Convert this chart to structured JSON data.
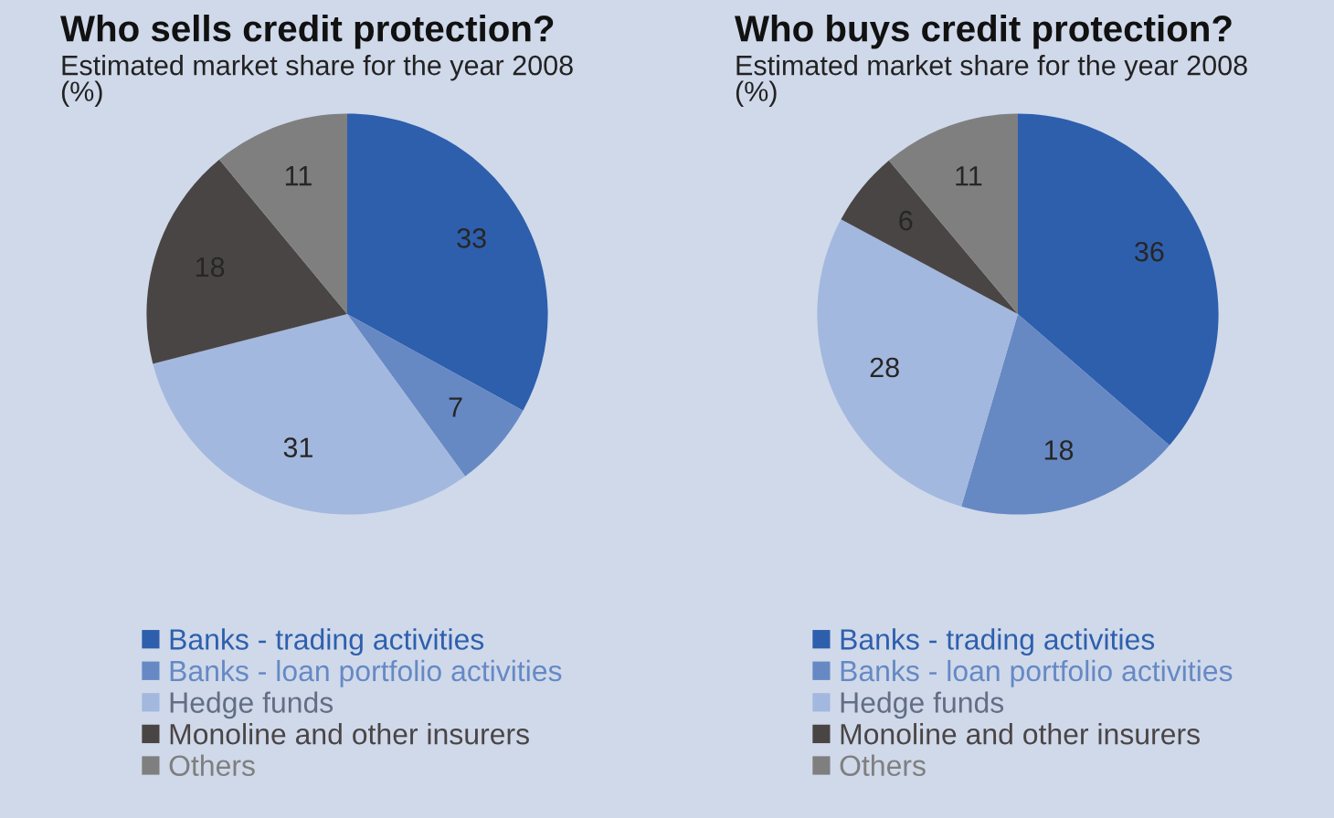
{
  "chart_data": [
    {
      "type": "pie",
      "title": "Who sells credit protection?",
      "subtitle": "Estimated market share for the year 2008\n(%)",
      "categories": [
        "Banks - trading activities",
        "Banks - loan portfolio activities",
        "Hedge funds",
        "Monoline and other insurers",
        "Others"
      ],
      "values": [
        33,
        7,
        31,
        18,
        11
      ],
      "colors": [
        "#2e5fad",
        "#6689c4",
        "#a3b8de",
        "#4a4545",
        "#7f7f7f"
      ],
      "data_labels": true,
      "legend": "bottom"
    },
    {
      "type": "pie",
      "title": "Who buys credit protection?",
      "subtitle": "Estimated market share for the year 2008\n(%)",
      "categories": [
        "Banks - trading activities",
        "Banks - loan portfolio activities",
        "Hedge funds",
        "Monoline and other insurers",
        "Others"
      ],
      "values": [
        36,
        18,
        28,
        6,
        11
      ],
      "colors": [
        "#2e5fad",
        "#6689c4",
        "#a3b8de",
        "#4a4545",
        "#7f7f7f"
      ],
      "data_labels": true,
      "legend": "bottom"
    }
  ]
}
